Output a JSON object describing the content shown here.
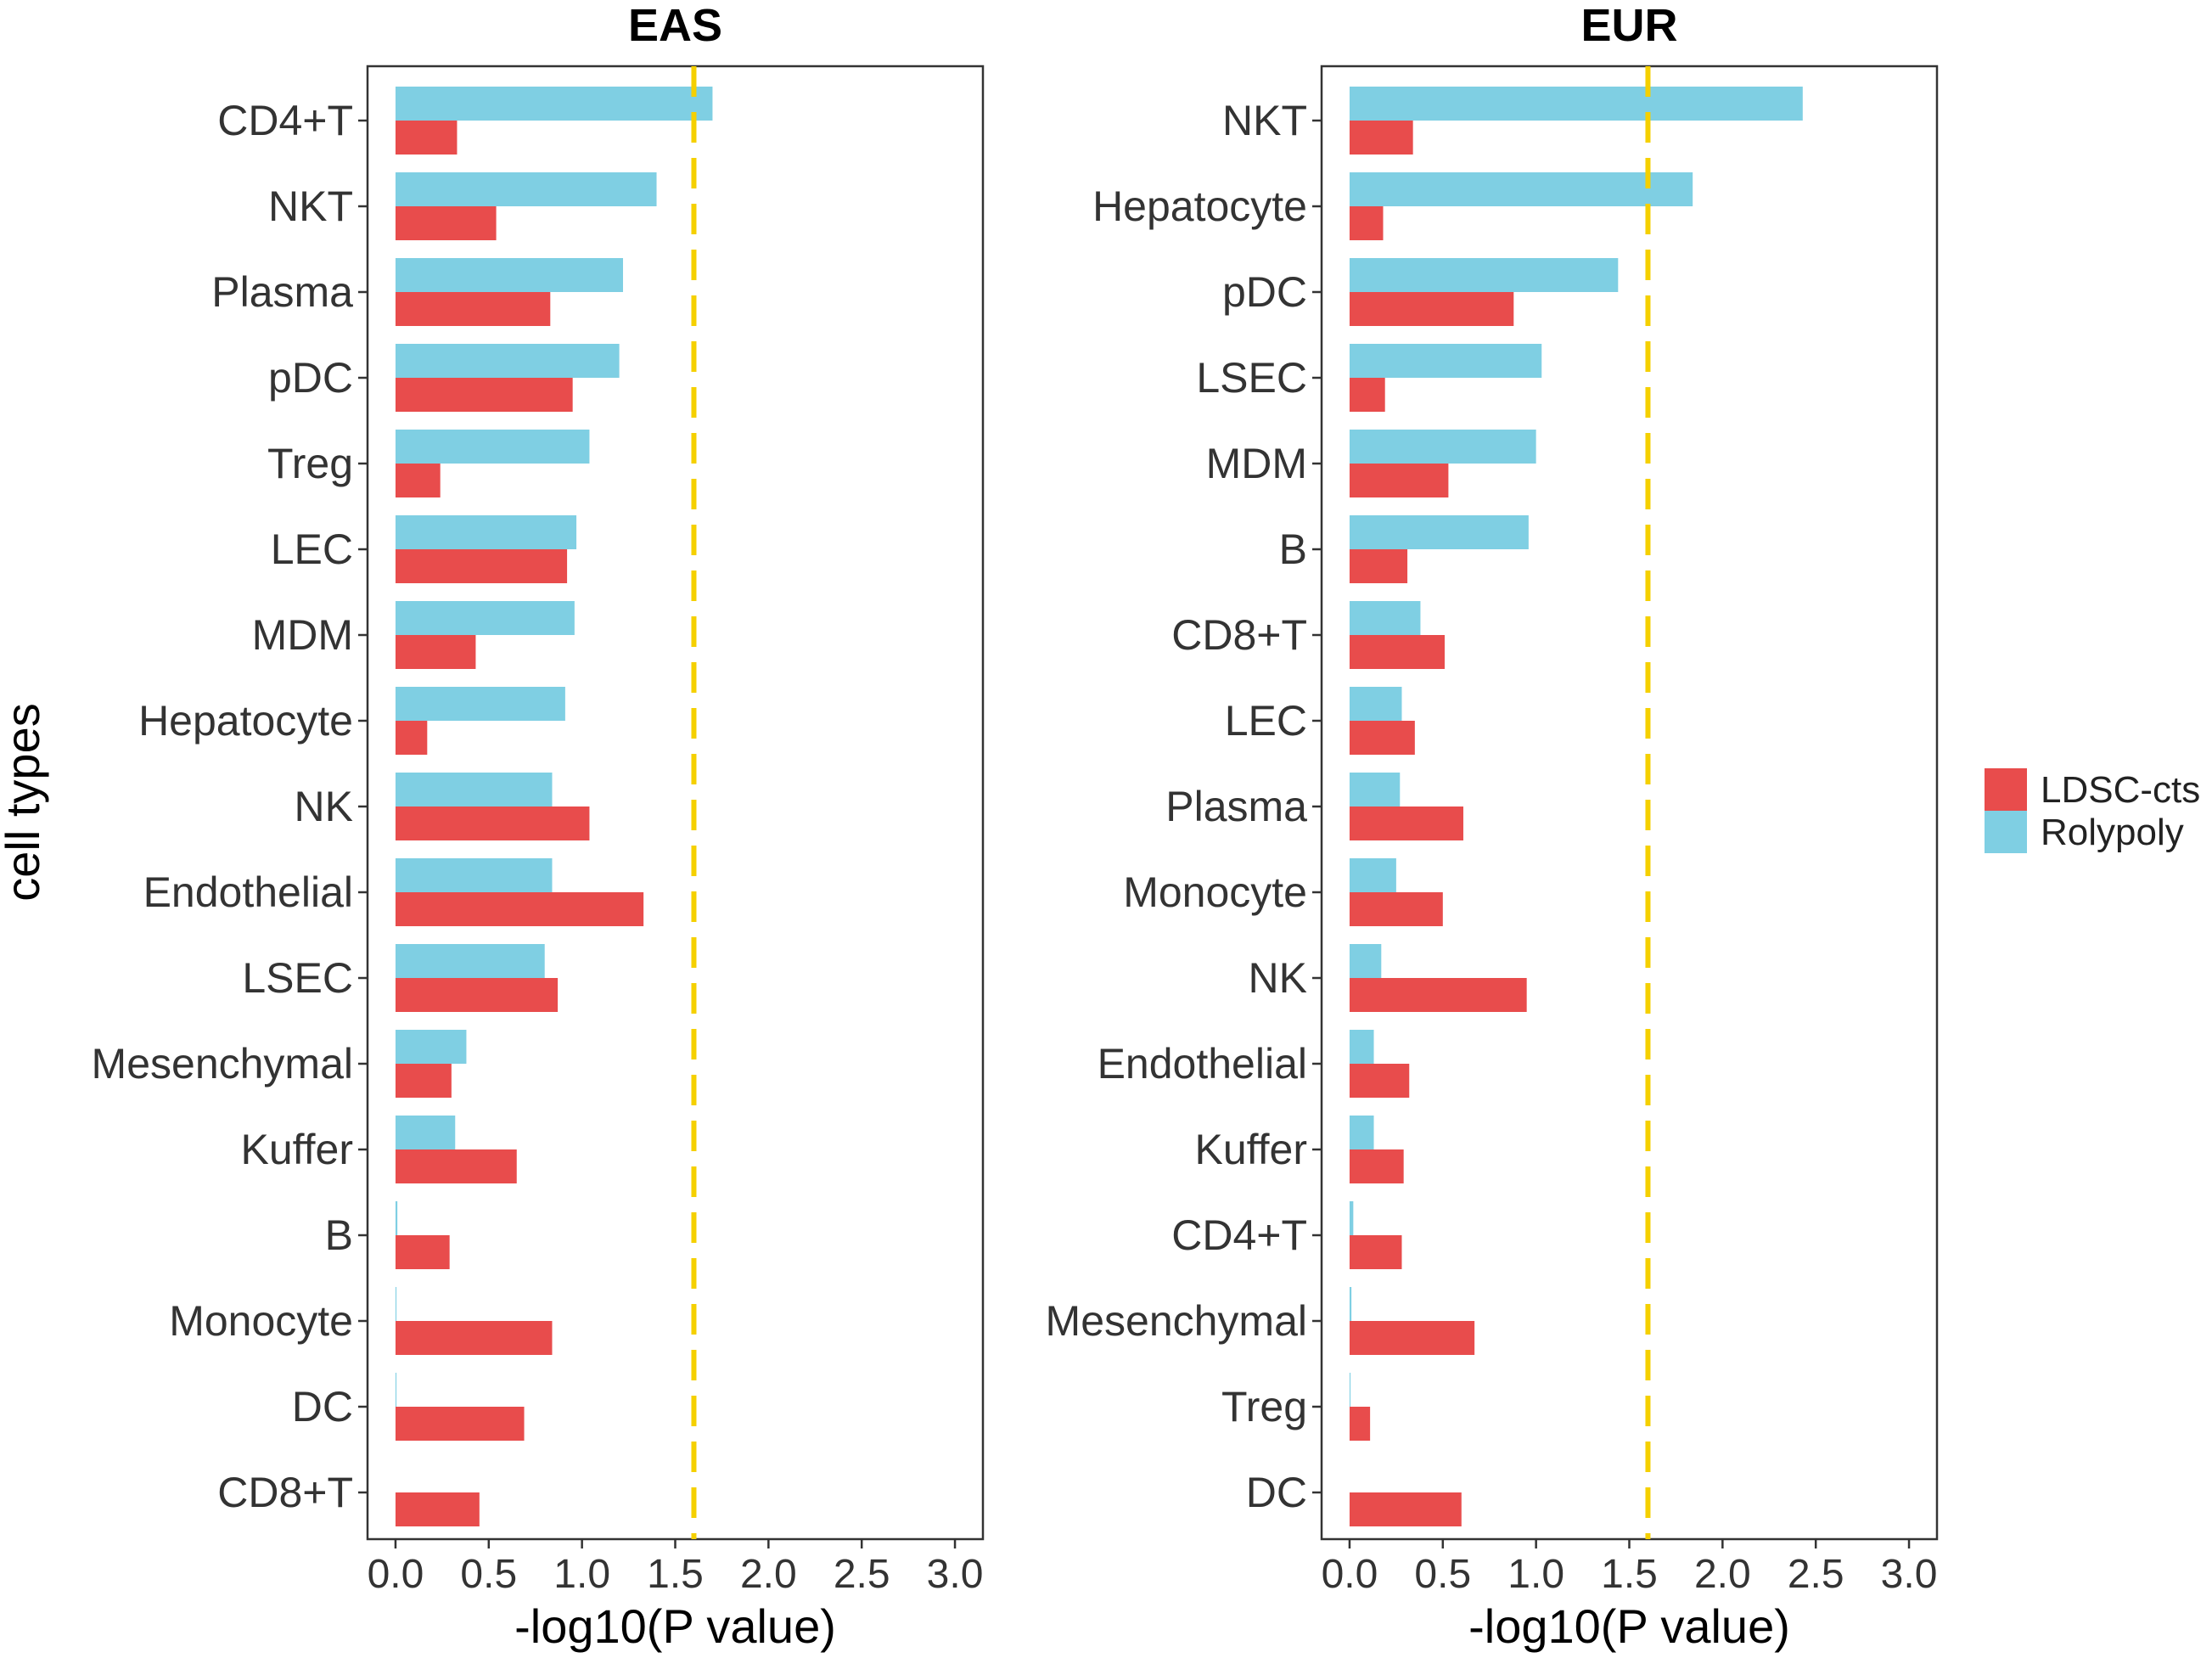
{
  "chart_data": {
    "type": "bar",
    "orientation": "horizontal",
    "ylabel": "cell types",
    "legend": {
      "position": "right",
      "entries": [
        {
          "name": "LDSC-cts",
          "color": "#e84c4c"
        },
        {
          "name": "Rolypoly",
          "color": "#7fcfe3"
        }
      ]
    },
    "threshold": {
      "value": 1.6,
      "color": "#f5d000",
      "style": "dashed"
    },
    "panels": [
      {
        "title": "EAS",
        "xlabel": "-log10(P value)",
        "xlim": [
          -0.15,
          3.15
        ],
        "xticks": [
          "0.0",
          "0.5",
          "1.0",
          "1.5",
          "2.0",
          "2.5",
          "3.0"
        ],
        "xtick_values": [
          0,
          0.5,
          1.0,
          1.5,
          2.0,
          2.5,
          3.0
        ],
        "categories": [
          "CD4+T",
          "NKT",
          "Plasma",
          "pDC",
          "Treg",
          "LEC",
          "MDM",
          "Hepatocyte",
          "NK",
          "Endothelial",
          "LSEC",
          "Mesenchymal",
          "Kuffer",
          "B",
          "Monocyte",
          "DC",
          "CD8+T"
        ],
        "series": [
          {
            "name": "Rolypoly",
            "values": [
              1.7,
              1.4,
              1.22,
              1.2,
              1.04,
              0.97,
              0.96,
              0.91,
              0.84,
              0.84,
              0.8,
              0.38,
              0.32,
              0.01,
              0.005,
              0.005,
              0.0
            ]
          },
          {
            "name": "LDSC-cts",
            "values": [
              0.33,
              0.54,
              0.83,
              0.95,
              0.24,
              0.92,
              0.43,
              0.17,
              1.04,
              1.33,
              0.87,
              0.3,
              0.65,
              0.29,
              0.84,
              0.69,
              0.45
            ]
          }
        ]
      },
      {
        "title": "EUR",
        "xlabel": "-log10(P value)",
        "xlim": [
          -0.15,
          3.15
        ],
        "xticks": [
          "0.0",
          "0.5",
          "1.0",
          "1.5",
          "2.0",
          "2.5",
          "3.0"
        ],
        "xtick_values": [
          0,
          0.5,
          1.0,
          1.5,
          2.0,
          2.5,
          3.0
        ],
        "categories": [
          "NKT",
          "Hepatocyte",
          "pDC",
          "LSEC",
          "MDM",
          "B",
          "CD8+T",
          "LEC",
          "Plasma",
          "Monocyte",
          "NK",
          "Endothelial",
          "Kuffer",
          "CD4+T",
          "Mesenchymal",
          "Treg",
          "DC"
        ],
        "series": [
          {
            "name": "Rolypoly",
            "values": [
              2.43,
              1.84,
              1.44,
              1.03,
              1.0,
              0.96,
              0.38,
              0.28,
              0.27,
              0.25,
              0.17,
              0.13,
              0.13,
              0.02,
              0.01,
              0.005,
              0.0
            ]
          },
          {
            "name": "LDSC-cts",
            "values": [
              0.34,
              0.18,
              0.88,
              0.19,
              0.53,
              0.31,
              0.51,
              0.35,
              0.61,
              0.5,
              0.95,
              0.32,
              0.29,
              0.28,
              0.67,
              0.11,
              0.6
            ]
          }
        ]
      }
    ]
  }
}
